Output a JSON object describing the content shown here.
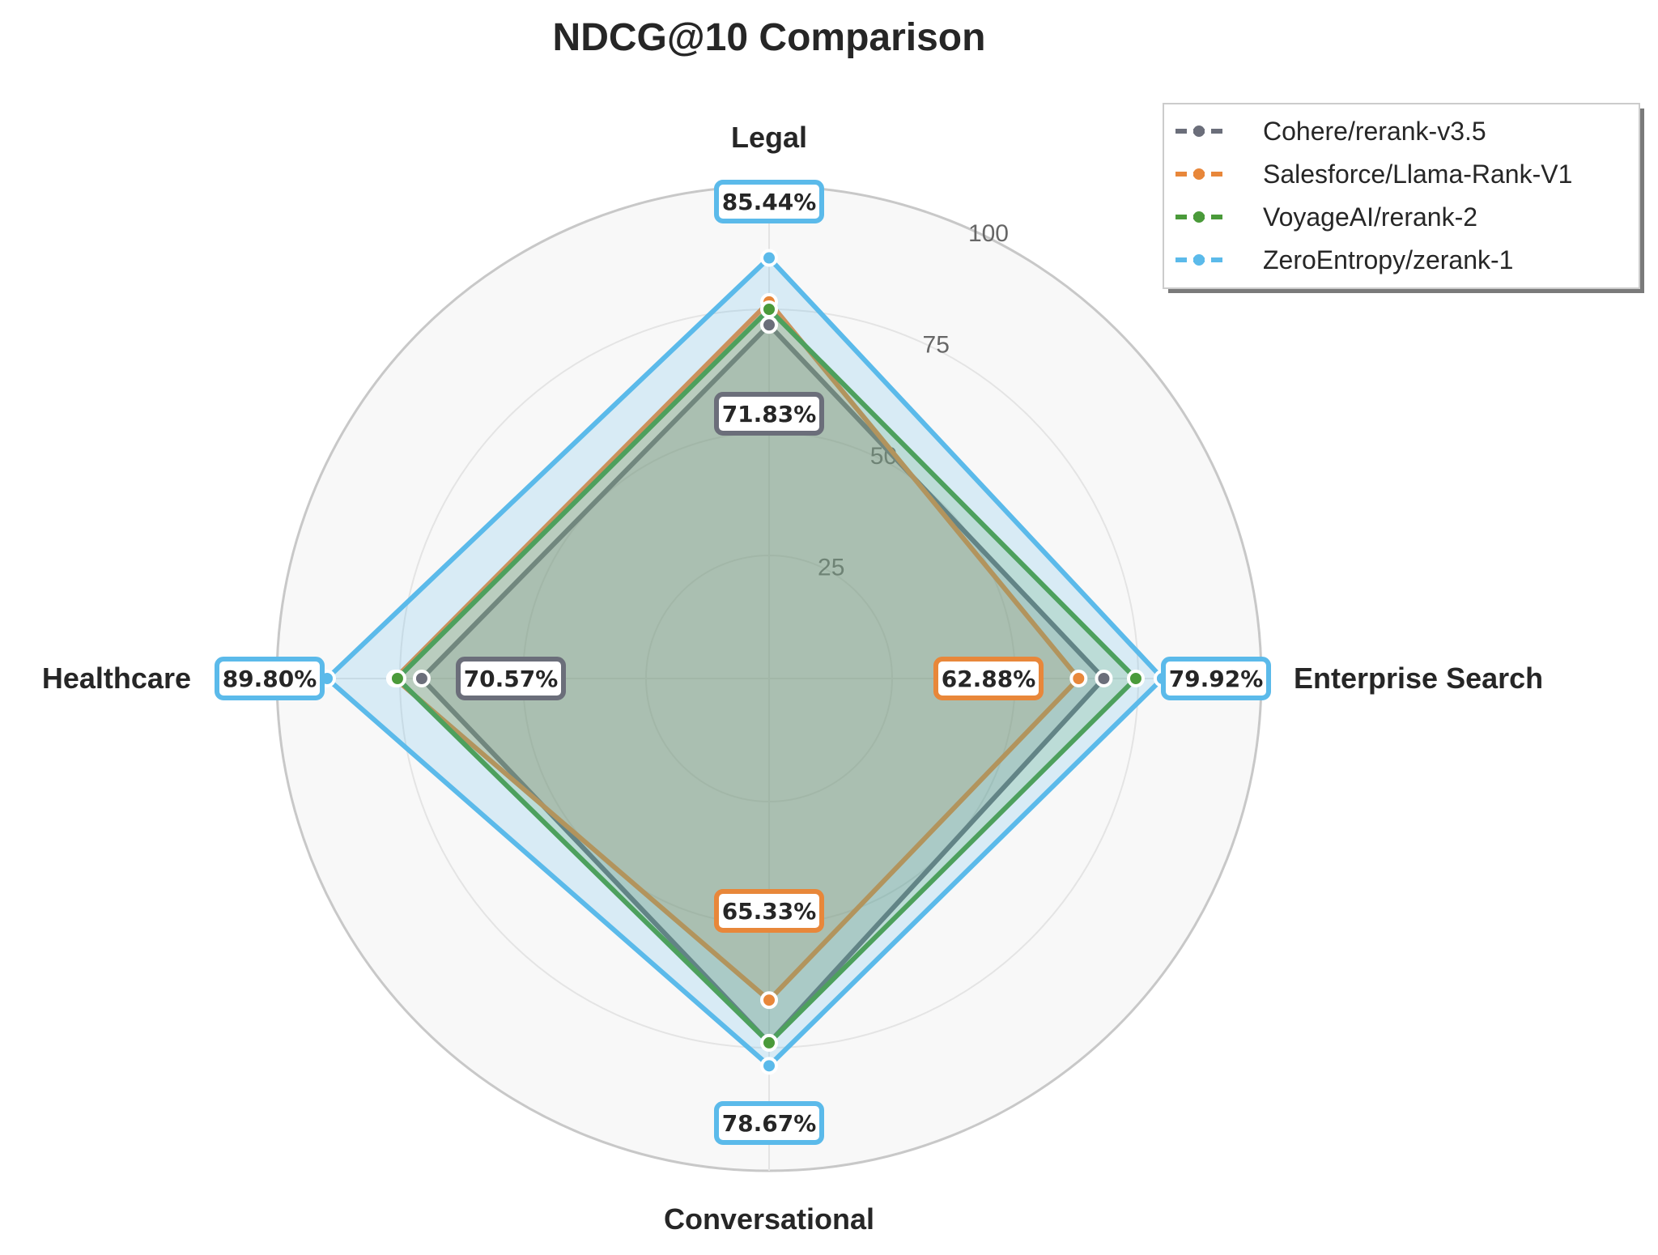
{
  "chart_data": {
    "type": "radar",
    "title": "NDCG@10 Comparison",
    "axes": [
      "Legal",
      "Enterprise Search",
      "Conversational",
      "Healthcare"
    ],
    "rlim": [
      0,
      100
    ],
    "rticks": [
      25,
      50,
      75,
      100
    ],
    "grid": true,
    "legend_position": "top-right",
    "series": [
      {
        "name": "Cohere/rerank-v3.5",
        "color": "#6b6e7a",
        "values": [
          71.83,
          68.0,
          74.0,
          70.57
        ]
      },
      {
        "name": "Salesforce/Llama-Rank-V1",
        "color": "#e8873a",
        "values": [
          76.5,
          62.88,
          65.33,
          76.0
        ]
      },
      {
        "name": "VoyageAI/rerank-2",
        "color": "#4a9a3a",
        "values": [
          75.0,
          74.5,
          74.0,
          75.5
        ]
      },
      {
        "name": "ZeroEntropy/zerank-1",
        "color": "#5bbaea",
        "values": [
          85.44,
          79.92,
          78.67,
          89.8
        ]
      }
    ],
    "annotations": [
      {
        "axis": "Legal",
        "series": "ZeroEntropy/zerank-1",
        "text": "85.44%"
      },
      {
        "axis": "Legal",
        "series": "Cohere/rerank-v3.5",
        "text": "71.83%"
      },
      {
        "axis": "Enterprise Search",
        "series": "ZeroEntropy/zerank-1",
        "text": "79.92%"
      },
      {
        "axis": "Enterprise Search",
        "series": "Salesforce/Llama-Rank-V1",
        "text": "62.88%"
      },
      {
        "axis": "Conversational",
        "series": "ZeroEntropy/zerank-1",
        "text": "78.67%"
      },
      {
        "axis": "Conversational",
        "series": "Salesforce/Llama-Rank-V1",
        "text": "65.33%"
      },
      {
        "axis": "Healthcare",
        "series": "ZeroEntropy/zerank-1",
        "text": "89.80%"
      },
      {
        "axis": "Healthcare",
        "series": "Cohere/rerank-v3.5",
        "text": "70.57%"
      }
    ]
  }
}
